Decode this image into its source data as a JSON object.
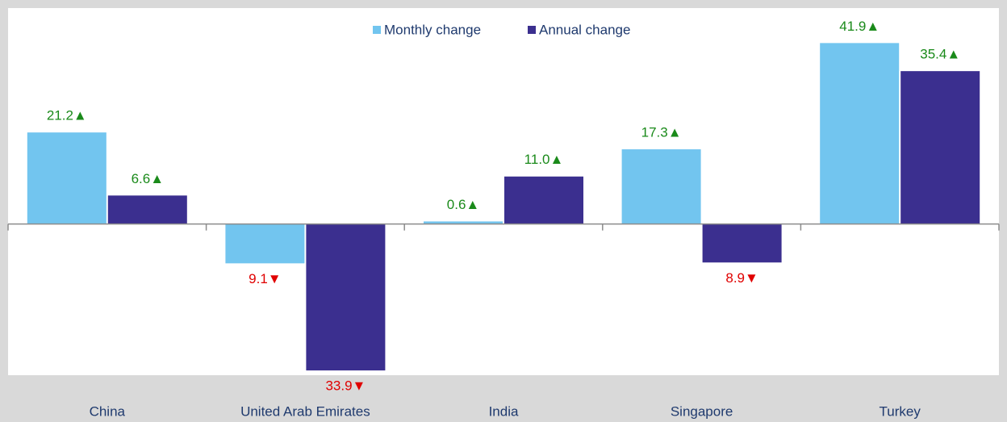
{
  "chart_data": {
    "type": "bar",
    "categories": [
      "China",
      "United Arab Emirates",
      "India",
      "Singapore",
      "Turkey"
    ],
    "series": [
      {
        "name": "Monthly change",
        "color": "#72c5ef",
        "values": [
          21.2,
          -9.1,
          0.6,
          17.3,
          41.9
        ],
        "value_labels": [
          "21.2▲",
          "9.1▼",
          "0.6▲",
          "17.3▲",
          "41.9▲"
        ]
      },
      {
        "name": "Annual change",
        "color": "#3b2f8f",
        "values": [
          6.6,
          -33.9,
          11.0,
          -8.9,
          35.4
        ],
        "value_labels": [
          "6.6▲",
          "33.9▼",
          "11.0▲",
          "8.9▼",
          "35.4▲"
        ]
      }
    ],
    "ylim": [
      -35,
      50
    ],
    "legend": "top"
  }
}
